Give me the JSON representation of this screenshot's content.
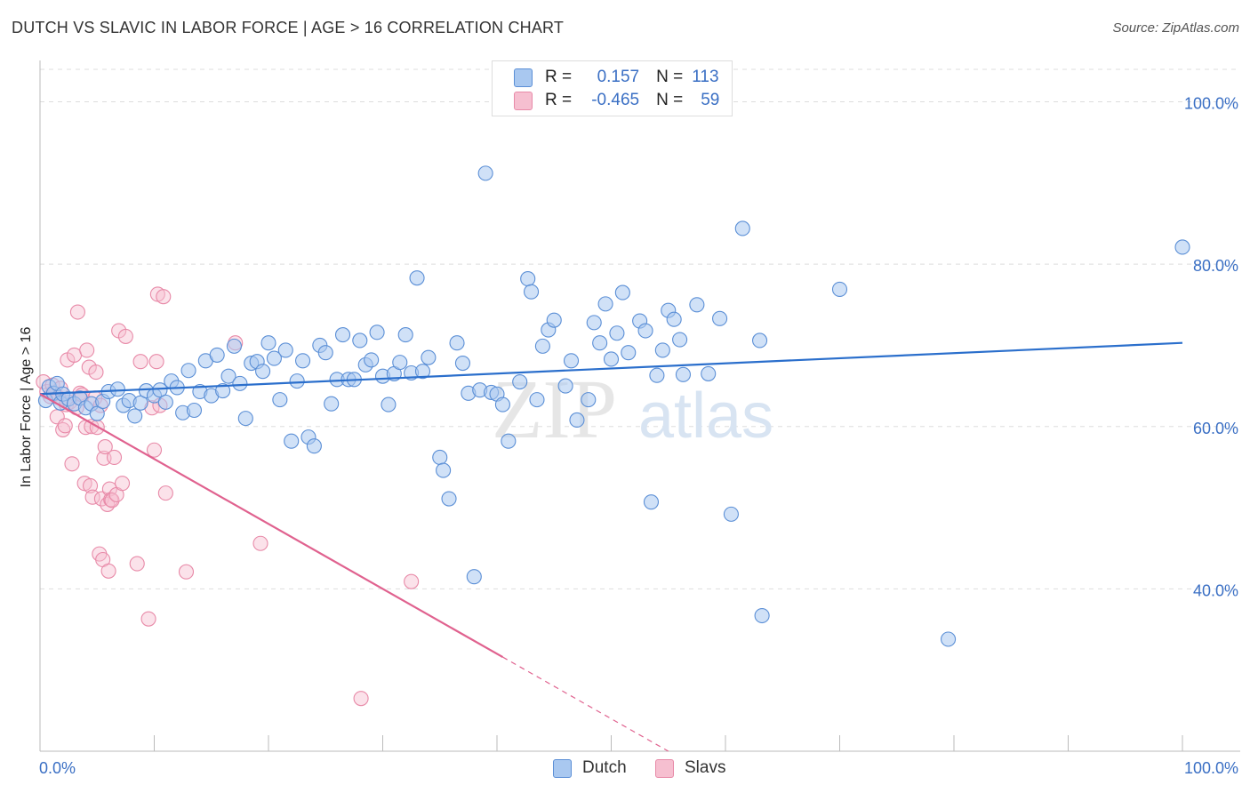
{
  "header": {
    "title": "DUTCH VS SLAVIC IN LABOR FORCE | AGE > 16 CORRELATION CHART",
    "source": "Source: ZipAtlas.com"
  },
  "watermark": {
    "zip": "ZIP",
    "atlas": "atlas"
  },
  "legend": {
    "rows": [
      {
        "r_label": "R =",
        "r_value": "0.157",
        "n_label": "N =",
        "n_value": "113"
      },
      {
        "r_label": "R =",
        "r_value": "-0.465",
        "n_label": "N =",
        "n_value": "59"
      }
    ]
  },
  "bottom_legend": {
    "dutch": "Dutch",
    "slavs": "Slavs"
  },
  "colors": {
    "dutch_fill": "#a9c8f0",
    "dutch_stroke": "#5b8fd6",
    "dutch_line": "#2b6fcc",
    "slavs_fill": "#f6bfd0",
    "slavs_stroke": "#e88aa8",
    "slavs_line": "#e0628f",
    "grid": "#dddddd",
    "axis_text": "#3a6fc4"
  },
  "chart_data": {
    "type": "scatter",
    "title": "DUTCH VS SLAVIC IN LABOR FORCE | AGE > 16 CORRELATION CHART",
    "xlabel": "",
    "ylabel": "In Labor Force | Age > 16",
    "xlim": [
      0,
      100
    ],
    "ylim": [
      20,
      104
    ],
    "x_tick_labels": [
      "0.0%",
      "100.0%"
    ],
    "y_ticks": [
      40,
      60,
      80,
      100
    ],
    "y_tick_labels": [
      "40.0%",
      "60.0%",
      "80.0%",
      "100.0%"
    ],
    "series": [
      {
        "name": "Dutch",
        "R": 0.157,
        "N": 113,
        "trend": {
          "x": [
            0,
            100
          ],
          "y": [
            64.0,
            70.3
          ],
          "dashed_from": null
        },
        "points": [
          [
            0.5,
            63.2
          ],
          [
            0.8,
            64.9
          ],
          [
            1.2,
            64.1
          ],
          [
            1.5,
            65.3
          ],
          [
            1.8,
            62.9
          ],
          [
            2.0,
            64.0
          ],
          [
            2.5,
            63.4
          ],
          [
            3.0,
            62.8
          ],
          [
            3.5,
            63.5
          ],
          [
            4.0,
            62.3
          ],
          [
            4.5,
            62.8
          ],
          [
            5.0,
            61.6
          ],
          [
            5.5,
            63.1
          ],
          [
            6.0,
            64.3
          ],
          [
            6.8,
            64.6
          ],
          [
            7.3,
            62.6
          ],
          [
            7.8,
            63.2
          ],
          [
            8.3,
            61.3
          ],
          [
            8.8,
            62.9
          ],
          [
            9.3,
            64.4
          ],
          [
            10.0,
            63.8
          ],
          [
            10.5,
            64.5
          ],
          [
            11.0,
            63.0
          ],
          [
            11.5,
            65.6
          ],
          [
            12.0,
            64.8
          ],
          [
            12.5,
            61.7
          ],
          [
            13.0,
            66.9
          ],
          [
            13.5,
            62.0
          ],
          [
            14.0,
            64.3
          ],
          [
            14.5,
            68.1
          ],
          [
            15.0,
            63.8
          ],
          [
            15.5,
            68.8
          ],
          [
            16.0,
            64.4
          ],
          [
            16.5,
            66.2
          ],
          [
            17.0,
            69.9
          ],
          [
            17.5,
            65.3
          ],
          [
            18.0,
            61.0
          ],
          [
            18.5,
            67.8
          ],
          [
            19.0,
            68.0
          ],
          [
            19.5,
            66.8
          ],
          [
            20.0,
            70.3
          ],
          [
            20.5,
            68.4
          ],
          [
            21.0,
            63.3
          ],
          [
            21.5,
            69.4
          ],
          [
            22.0,
            58.2
          ],
          [
            22.5,
            65.6
          ],
          [
            23.0,
            68.1
          ],
          [
            23.5,
            58.7
          ],
          [
            24.0,
            57.6
          ],
          [
            24.5,
            70.0
          ],
          [
            25.0,
            69.1
          ],
          [
            25.5,
            62.8
          ],
          [
            26.0,
            65.8
          ],
          [
            26.5,
            71.3
          ],
          [
            27.0,
            65.8
          ],
          [
            27.5,
            65.8
          ],
          [
            28.0,
            70.6
          ],
          [
            28.5,
            67.6
          ],
          [
            29.0,
            68.2
          ],
          [
            29.5,
            71.6
          ],
          [
            30.0,
            66.2
          ],
          [
            30.5,
            62.7
          ],
          [
            31.0,
            66.5
          ],
          [
            31.5,
            67.9
          ],
          [
            32.0,
            71.3
          ],
          [
            32.5,
            66.6
          ],
          [
            33.0,
            78.3
          ],
          [
            33.5,
            66.8
          ],
          [
            34.0,
            68.5
          ],
          [
            35.0,
            56.2
          ],
          [
            35.3,
            54.6
          ],
          [
            35.8,
            51.1
          ],
          [
            36.5,
            70.3
          ],
          [
            37.0,
            67.8
          ],
          [
            37.5,
            64.1
          ],
          [
            38.0,
            41.5
          ],
          [
            38.5,
            64.5
          ],
          [
            39.0,
            91.2
          ],
          [
            39.5,
            64.2
          ],
          [
            40.0,
            64.0
          ],
          [
            40.5,
            62.7
          ],
          [
            41.0,
            58.2
          ],
          [
            42.0,
            65.5
          ],
          [
            42.7,
            78.2
          ],
          [
            43.0,
            76.6
          ],
          [
            43.5,
            63.3
          ],
          [
            44.0,
            69.9
          ],
          [
            44.5,
            71.9
          ],
          [
            45.0,
            73.1
          ],
          [
            46.0,
            65.0
          ],
          [
            46.5,
            68.1
          ],
          [
            47.0,
            60.8
          ],
          [
            48.0,
            63.3
          ],
          [
            48.5,
            72.8
          ],
          [
            49.0,
            70.3
          ],
          [
            49.5,
            75.1
          ],
          [
            50.0,
            68.3
          ],
          [
            50.5,
            71.5
          ],
          [
            51.0,
            76.5
          ],
          [
            51.5,
            69.1
          ],
          [
            52.5,
            73.0
          ],
          [
            53.0,
            71.8
          ],
          [
            53.5,
            50.7
          ],
          [
            54.0,
            66.3
          ],
          [
            54.5,
            69.4
          ],
          [
            55.0,
            74.3
          ],
          [
            55.5,
            73.2
          ],
          [
            56.0,
            70.7
          ],
          [
            56.3,
            66.4
          ],
          [
            57.5,
            75.0
          ],
          [
            58.5,
            66.5
          ],
          [
            59.5,
            73.3
          ],
          [
            60.5,
            49.2
          ],
          [
            61.5,
            84.4
          ],
          [
            63.0,
            70.6
          ],
          [
            63.2,
            36.7
          ],
          [
            70.0,
            76.9
          ],
          [
            79.5,
            33.8
          ],
          [
            100.0,
            82.1
          ]
        ]
      },
      {
        "name": "Slavs",
        "R": -0.465,
        "N": 59,
        "trend": {
          "x": [
            0,
            55
          ],
          "y": [
            64.0,
            20.0
          ],
          "solid_until_x": 40.5
        },
        "points": [
          [
            0.3,
            65.5
          ],
          [
            0.6,
            64.3
          ],
          [
            0.9,
            63.7
          ],
          [
            1.1,
            65.1
          ],
          [
            1.3,
            64.0
          ],
          [
            1.5,
            61.2
          ],
          [
            1.6,
            63.6
          ],
          [
            1.8,
            64.7
          ],
          [
            2.0,
            59.6
          ],
          [
            2.2,
            60.1
          ],
          [
            2.3,
            62.7
          ],
          [
            2.4,
            68.2
          ],
          [
            2.6,
            63.0
          ],
          [
            2.8,
            55.4
          ],
          [
            3.0,
            68.8
          ],
          [
            3.2,
            62.3
          ],
          [
            3.3,
            74.1
          ],
          [
            3.5,
            64.1
          ],
          [
            3.7,
            63.9
          ],
          [
            3.9,
            53.0
          ],
          [
            4.0,
            59.9
          ],
          [
            4.1,
            69.4
          ],
          [
            4.3,
            67.3
          ],
          [
            4.4,
            52.7
          ],
          [
            4.5,
            60.0
          ],
          [
            4.6,
            51.3
          ],
          [
            4.8,
            63.5
          ],
          [
            4.9,
            66.7
          ],
          [
            5.0,
            59.9
          ],
          [
            5.2,
            44.3
          ],
          [
            5.3,
            62.6
          ],
          [
            5.4,
            51.1
          ],
          [
            5.5,
            43.6
          ],
          [
            5.6,
            56.1
          ],
          [
            5.7,
            57.5
          ],
          [
            5.9,
            50.4
          ],
          [
            6.0,
            42.2
          ],
          [
            6.1,
            52.3
          ],
          [
            6.2,
            51.0
          ],
          [
            6.3,
            50.9
          ],
          [
            6.5,
            56.2
          ],
          [
            6.7,
            51.6
          ],
          [
            6.9,
            71.8
          ],
          [
            7.2,
            53.0
          ],
          [
            7.5,
            71.1
          ],
          [
            8.5,
            43.1
          ],
          [
            8.8,
            68.0
          ],
          [
            9.5,
            36.3
          ],
          [
            9.8,
            62.3
          ],
          [
            10.0,
            57.1
          ],
          [
            10.2,
            68.0
          ],
          [
            10.3,
            76.3
          ],
          [
            10.5,
            62.6
          ],
          [
            10.8,
            76.0
          ],
          [
            11.0,
            51.8
          ],
          [
            12.8,
            42.1
          ],
          [
            17.1,
            70.3
          ],
          [
            19.3,
            45.6
          ],
          [
            28.1,
            26.5
          ],
          [
            32.5,
            40.9
          ]
        ]
      }
    ]
  }
}
